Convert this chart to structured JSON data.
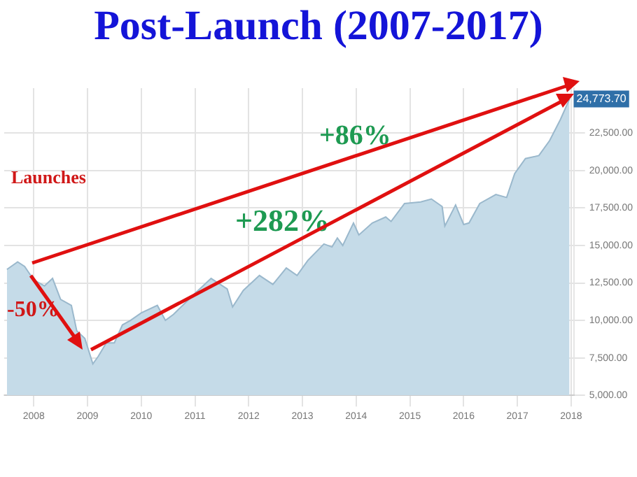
{
  "chart_data": {
    "type": "area",
    "title": "Post-Launch (2007-2017)",
    "x": [
      2007.5,
      2007.7,
      2007.83,
      2008.0,
      2008.2,
      2008.35,
      2008.5,
      2008.7,
      2008.8,
      2008.95,
      2009.1,
      2009.2,
      2009.35,
      2009.5,
      2009.65,
      2009.8,
      2010.0,
      2010.3,
      2010.45,
      2010.6,
      2010.8,
      2011.0,
      2011.3,
      2011.6,
      2011.7,
      2011.9,
      2012.2,
      2012.45,
      2012.7,
      2012.9,
      2013.1,
      2013.4,
      2013.55,
      2013.65,
      2013.75,
      2013.95,
      2014.05,
      2014.3,
      2014.55,
      2014.65,
      2014.9,
      2015.2,
      2015.4,
      2015.6,
      2015.65,
      2015.85,
      2016.0,
      2016.1,
      2016.3,
      2016.6,
      2016.8,
      2016.95,
      2017.15,
      2017.4,
      2017.6,
      2017.8,
      2017.97
    ],
    "series": [
      {
        "color": "#c5dbe8",
        "values": [
          13400,
          13900,
          13600,
          12700,
          12300,
          12800,
          11400,
          11000,
          9300,
          8800,
          7100,
          7600,
          8500,
          8500,
          9700,
          10000,
          10500,
          11000,
          10000,
          10400,
          11100,
          11800,
          12800,
          12100,
          10900,
          12000,
          13000,
          12400,
          13500,
          13000,
          14000,
          15100,
          14900,
          15500,
          15000,
          16500,
          15700,
          16500,
          16900,
          16600,
          17800,
          17900,
          18100,
          17600,
          16300,
          17700,
          16400,
          16500,
          17800,
          18400,
          18200,
          19800,
          20800,
          21000,
          22000,
          23400,
          24773.7
        ]
      }
    ],
    "xlim": [
      2007.45,
      2018.05
    ],
    "xticks": [
      2008,
      2009,
      2010,
      2011,
      2012,
      2013,
      2014,
      2015,
      2016,
      2017,
      2018
    ],
    "ylim": [
      5000,
      25500
    ],
    "yticks": [
      {
        "value": 5000,
        "label": "5,000.00"
      },
      {
        "value": 7500,
        "label": "7,500.00"
      },
      {
        "value": 10000,
        "label": "10,000.00"
      },
      {
        "value": 12500,
        "label": "12,500.00"
      },
      {
        "value": 15000,
        "label": "15,000.00"
      },
      {
        "value": 17500,
        "label": "17,500.00"
      },
      {
        "value": 20000,
        "label": "20,000.00"
      },
      {
        "value": 22500,
        "label": "22,500.00"
      }
    ],
    "grid": true,
    "legend": false,
    "annotations": [
      {
        "text": "24,773.70",
        "x": 2017.97,
        "y": 24773.7
      },
      "Launches",
      "+86%",
      "+282%",
      "-50%"
    ]
  }
}
